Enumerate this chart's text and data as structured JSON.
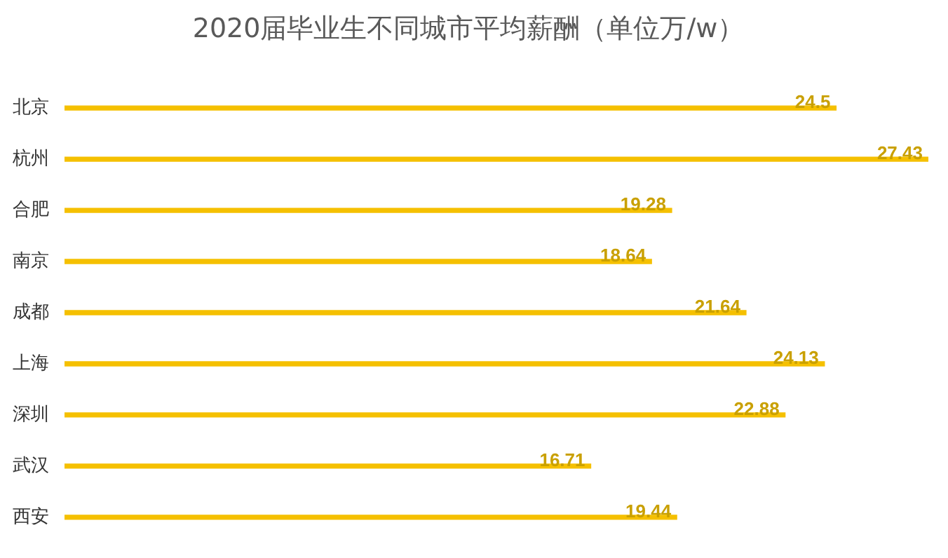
{
  "chart_data": {
    "type": "bar",
    "orientation": "horizontal",
    "title": "2020届毕业生不同城市平均薪酬（单位万/w）",
    "categories": [
      "北京",
      "杭州",
      "合肥",
      "南京",
      "成都",
      "上海",
      "深圳",
      "武汉",
      "西安"
    ],
    "values": [
      24.5,
      27.43,
      19.28,
      18.64,
      21.64,
      24.13,
      22.88,
      16.71,
      19.44
    ],
    "color": "#f5c000",
    "data_labels": true
  }
}
